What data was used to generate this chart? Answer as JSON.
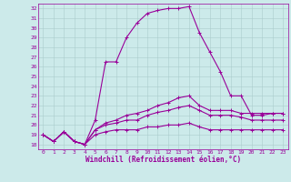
{
  "xlabel": "Windchill (Refroidissement éolien,°C)",
  "xlim": [
    -0.5,
    23.5
  ],
  "ylim": [
    17.5,
    32.5
  ],
  "xtick_vals": [
    0,
    1,
    2,
    3,
    4,
    5,
    6,
    7,
    8,
    9,
    10,
    11,
    12,
    13,
    14,
    15,
    16,
    17,
    18,
    19,
    20,
    21,
    22,
    23
  ],
  "ytick_vals": [
    18,
    19,
    20,
    21,
    22,
    23,
    24,
    25,
    26,
    27,
    28,
    29,
    30,
    31,
    32
  ],
  "bg_color": "#cceaea",
  "grid_color": "#aacccc",
  "line_color": "#990099",
  "curves": [
    [
      19.0,
      18.3,
      19.3,
      18.3,
      18.0,
      20.5,
      26.5,
      26.5,
      29.0,
      30.5,
      31.5,
      31.8,
      32.0,
      32.0,
      32.2,
      29.5,
      27.5,
      25.5,
      23.0,
      23.0,
      21.0,
      21.0,
      21.2,
      21.2
    ],
    [
      19.0,
      18.3,
      19.3,
      18.3,
      18.0,
      19.5,
      20.2,
      20.5,
      21.0,
      21.2,
      21.5,
      22.0,
      22.3,
      22.8,
      23.0,
      22.0,
      21.5,
      21.5,
      21.5,
      21.2,
      21.2,
      21.2,
      21.2,
      21.2
    ],
    [
      19.0,
      18.3,
      19.3,
      18.3,
      18.0,
      19.5,
      20.0,
      20.2,
      20.5,
      20.5,
      21.0,
      21.3,
      21.5,
      21.8,
      22.0,
      21.5,
      21.0,
      21.0,
      21.0,
      20.8,
      20.5,
      20.5,
      20.5,
      20.5
    ],
    [
      19.0,
      18.3,
      19.3,
      18.3,
      18.0,
      19.0,
      19.3,
      19.5,
      19.5,
      19.5,
      19.8,
      19.8,
      20.0,
      20.0,
      20.2,
      19.8,
      19.5,
      19.5,
      19.5,
      19.5,
      19.5,
      19.5,
      19.5,
      19.5
    ]
  ],
  "curve_lw": [
    0.8,
    0.8,
    0.8,
    0.8
  ],
  "marker_size": 2.5,
  "tick_fontsize": 4.5,
  "xlabel_fontsize": 5.5
}
